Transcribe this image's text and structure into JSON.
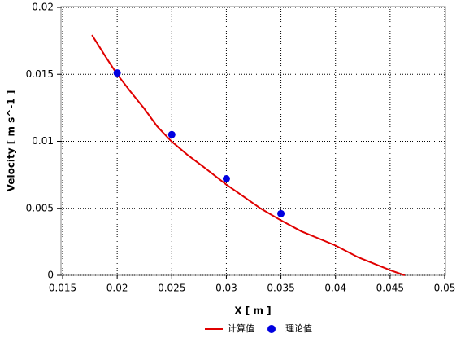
{
  "chart_data": {
    "type": "line",
    "xlabel": "X [ m ]",
    "ylabel": "Velocity [ m s^-1 ]",
    "xlim": [
      0.015,
      0.05
    ],
    "xticks": [
      0.015,
      0.02,
      0.025,
      0.03,
      0.035,
      0.04,
      0.045,
      0.05
    ],
    "ylim": [
      0,
      0.02
    ],
    "yticks": [
      0,
      0.005,
      0.01,
      0.015,
      0.02
    ],
    "grid": true,
    "legend": "bottom",
    "series": [
      {
        "name": "计算值",
        "color": "#e00000",
        "mode": "line",
        "x": [
          0.01769,
          0.01896,
          0.01993,
          0.02119,
          0.02246,
          0.02366,
          0.02493,
          0.02642,
          0.02791,
          0.02993,
          0.03164,
          0.03313,
          0.03493,
          0.03687,
          0.03993,
          0.04209,
          0.04507,
          0.04634
        ],
        "values": [
          0.01793,
          0.01629,
          0.01508,
          0.01374,
          0.01246,
          0.01112,
          0.01003,
          0.009,
          0.00809,
          0.00681,
          0.00584,
          0.00499,
          0.00413,
          0.00328,
          0.00225,
          0.00134,
          0.00036,
          0.0
        ]
      },
      {
        "name": "理论值",
        "color": "#0000e0",
        "mode": "markers",
        "x": [
          0.02,
          0.025,
          0.03,
          0.035
        ],
        "values": [
          0.0151,
          0.0105,
          0.0072,
          0.0046
        ]
      }
    ]
  }
}
